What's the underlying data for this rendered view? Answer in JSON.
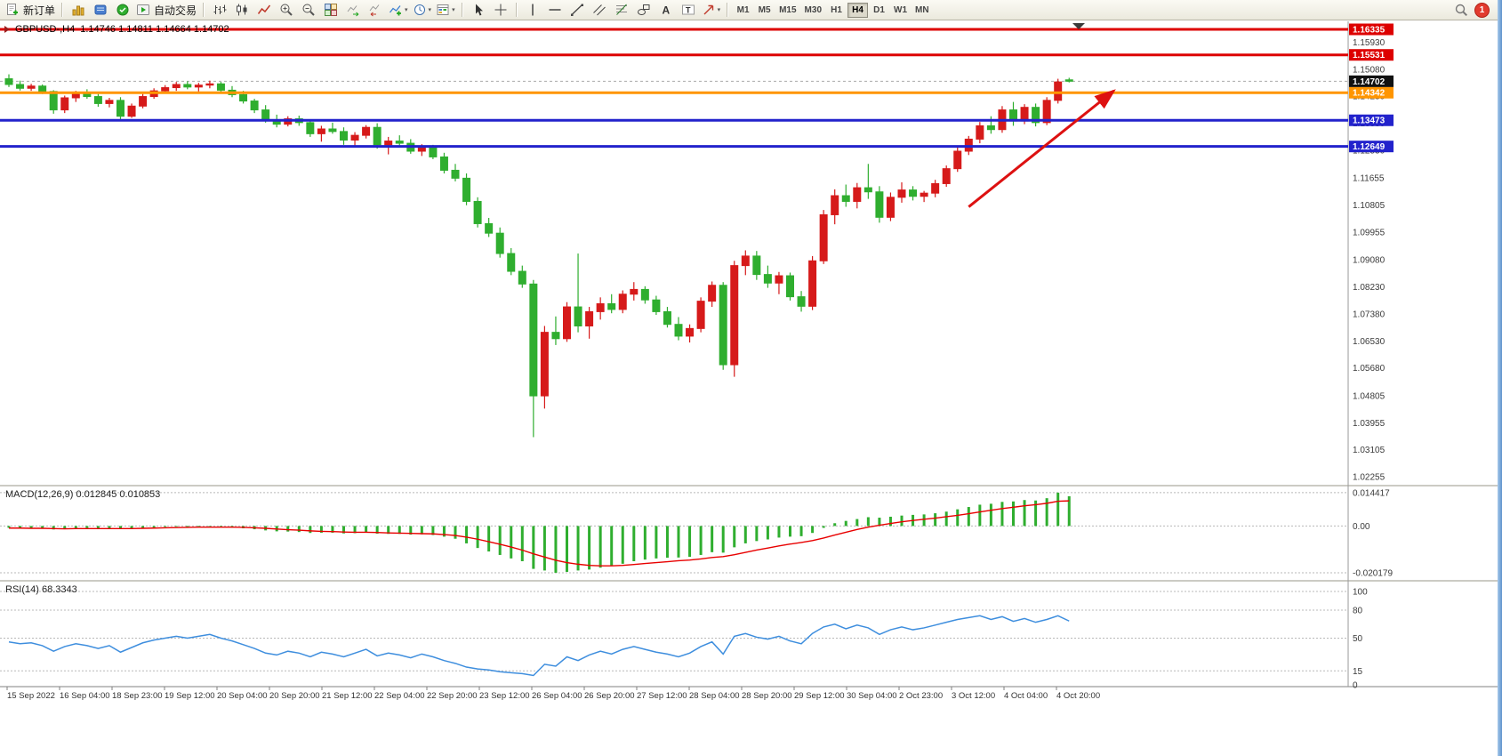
{
  "window": {
    "badge_count": "1"
  },
  "toolbar": {
    "new_order_label": "新订单",
    "auto_trading_label": "自动交易",
    "timeframes": [
      "M1",
      "M5",
      "M15",
      "M30",
      "H1",
      "H4",
      "D1",
      "W1",
      "MN"
    ],
    "active_timeframe": "H4",
    "icons": [
      "new-order",
      "charts",
      "profiles",
      "market-watch",
      "auto-trading",
      "bar-chart",
      "candlestick-chart",
      "line-chart",
      "zoom-in",
      "zoom-out",
      "tile-windows",
      "auto-scroll",
      "chart-shift",
      "indicators",
      "periods",
      "templates",
      "cursor",
      "crosshair",
      "vertical-line",
      "horizontal-line",
      "trendline",
      "equidistant-channel",
      "fibonacci-retracement",
      "graphic-objects",
      "text",
      "text-label",
      "arrows",
      "search",
      "notifications"
    ]
  },
  "chart": {
    "title": "GBPUSD-,H4",
    "ohlc_text": "1.14746 1.14811 1.14664 1.14702"
  },
  "indicators": {
    "macd": {
      "text": "MACD(12,26,9) 0.012845 0.010853",
      "scale": [
        "0.014417",
        "0.00",
        "-0.020179"
      ],
      "scale_values": [
        0.014417,
        0,
        -0.020179
      ]
    },
    "rsi": {
      "text": "RSI(14) 68.3343",
      "levels": [
        100,
        80,
        50,
        15,
        0
      ]
    }
  },
  "colors": {
    "bull": "#d61a1a",
    "bear": "#2fae2f",
    "macd_hist": "#2fae2f",
    "macd_signal": "#e80000",
    "rsi": "#3e8ede",
    "line_red": "#dd0000",
    "line_orange": "#ff9500",
    "line_blue": "#2222cc",
    "current_box": "#111111",
    "arrow": "#dd1111"
  },
  "price_lines": [
    {
      "label": "1.16335",
      "price": 1.16335,
      "color": "#dd0000",
      "style": "solid",
      "width": 3
    },
    {
      "label": "1.15531",
      "price": 1.15531,
      "color": "#dd0000",
      "style": "solid",
      "width": 3
    },
    {
      "label": "1.14342",
      "price": 1.14342,
      "color": "#ff9500",
      "style": "solid",
      "width": 3
    },
    {
      "label": "1.13473",
      "price": 1.13473,
      "color": "#2222cc",
      "style": "solid",
      "width": 3
    },
    {
      "label": "1.12649",
      "price": 1.12649,
      "color": "#2222cc",
      "style": "solid",
      "width": 3
    }
  ],
  "current_price": {
    "label": "1.14702",
    "price": 1.14702,
    "box_color": "#111111"
  },
  "axis": {
    "price_ticks": [
      "1.15930",
      "1.15080",
      "1.14230",
      "1.13380",
      "1.12530",
      "1.11655",
      "1.10805",
      "1.09955",
      "1.09080",
      "1.08230",
      "1.07380",
      "1.06530",
      "1.05680",
      "1.04805",
      "1.03955",
      "1.03105",
      "1.02255"
    ],
    "time_ticks": [
      "15 Sep 2022",
      "16 Sep 04:00",
      "18 Sep 23:00",
      "19 Sep 12:00",
      "20 Sep 04:00",
      "20 Sep 20:00",
      "21 Sep 12:00",
      "22 Sep 04:00",
      "22 Sep 20:00",
      "23 Sep 12:00",
      "26 Sep 04:00",
      "26 Sep 20:00",
      "27 Sep 12:00",
      "28 Sep 04:00",
      "28 Sep 20:00",
      "29 Sep 12:00",
      "30 Sep 04:00",
      "2 Oct 23:00",
      "3 Oct 12:00",
      "4 Oct 04:00",
      "4 Oct 20:00"
    ]
  },
  "annotations": {
    "trend_arrow": {
      "from_bar": 86,
      "from_price": 1.1075,
      "to_bar": 99,
      "to_price": 1.144,
      "color": "#dd1111"
    }
  },
  "chart_data": {
    "type": "candlestick",
    "symbol": "GBPUSD-",
    "timeframe": "H4",
    "ohlc_current": {
      "open": 1.14746,
      "high": 1.14811,
      "low": 1.14664,
      "close": 1.14702
    },
    "price_max_visible": 1.16335,
    "price_min_visible": 1.02255,
    "candles": [
      [
        1.1478,
        1.1492,
        1.1452,
        1.146
      ],
      [
        1.146,
        1.1472,
        1.1441,
        1.1448
      ],
      [
        1.1448,
        1.1462,
        1.144,
        1.1455
      ],
      [
        1.1455,
        1.146,
        1.143,
        1.1438
      ],
      [
        1.1438,
        1.1442,
        1.1368,
        1.138
      ],
      [
        1.138,
        1.1425,
        1.137,
        1.1418
      ],
      [
        1.1418,
        1.144,
        1.1405,
        1.1432
      ],
      [
        1.1432,
        1.1445,
        1.1415,
        1.1422
      ],
      [
        1.1422,
        1.143,
        1.139,
        1.14
      ],
      [
        1.14,
        1.1418,
        1.1388,
        1.141
      ],
      [
        1.141,
        1.142,
        1.1347,
        1.136
      ],
      [
        1.136,
        1.14,
        1.1355,
        1.1392
      ],
      [
        1.1392,
        1.143,
        1.1385,
        1.1422
      ],
      [
        1.1422,
        1.1448,
        1.1415,
        1.144
      ],
      [
        1.144,
        1.1458,
        1.1432,
        1.145
      ],
      [
        1.145,
        1.1468,
        1.144,
        1.146
      ],
      [
        1.146,
        1.147,
        1.1445,
        1.1452
      ],
      [
        1.1452,
        1.1465,
        1.1438,
        1.1458
      ],
      [
        1.1458,
        1.1472,
        1.1448,
        1.1462
      ],
      [
        1.1462,
        1.1468,
        1.1435,
        1.1442
      ],
      [
        1.1442,
        1.1455,
        1.142,
        1.1428
      ],
      [
        1.1428,
        1.144,
        1.14,
        1.1408
      ],
      [
        1.1408,
        1.1415,
        1.137,
        1.138
      ],
      [
        1.138,
        1.1395,
        1.134,
        1.1348
      ],
      [
        1.1348,
        1.1365,
        1.1325,
        1.1335
      ],
      [
        1.1335,
        1.136,
        1.1328,
        1.1352
      ],
      [
        1.1352,
        1.1362,
        1.133,
        1.134
      ],
      [
        1.134,
        1.135,
        1.1295,
        1.1305
      ],
      [
        1.1305,
        1.133,
        1.128,
        1.132
      ],
      [
        1.132,
        1.134,
        1.1305,
        1.1312
      ],
      [
        1.1312,
        1.1325,
        1.127,
        1.1285
      ],
      [
        1.1285,
        1.131,
        1.1265,
        1.13
      ],
      [
        1.13,
        1.1332,
        1.129,
        1.1325
      ],
      [
        1.1325,
        1.1338,
        1.1258,
        1.127
      ],
      [
        1.127,
        1.1295,
        1.124,
        1.1282
      ],
      [
        1.1282,
        1.13,
        1.1268,
        1.1275
      ],
      [
        1.1275,
        1.1288,
        1.1242,
        1.125
      ],
      [
        1.125,
        1.1272,
        1.1235,
        1.1262
      ],
      [
        1.1262,
        1.127,
        1.1225,
        1.1232
      ],
      [
        1.1232,
        1.1245,
        1.118,
        1.119
      ],
      [
        1.119,
        1.121,
        1.1155,
        1.1165
      ],
      [
        1.1165,
        1.118,
        1.108,
        1.1092
      ],
      [
        1.1092,
        1.1105,
        1.101,
        1.1022
      ],
      [
        1.1022,
        1.104,
        1.098,
        1.0992
      ],
      [
        1.0992,
        1.101,
        1.0915,
        1.0928
      ],
      [
        1.0928,
        1.0945,
        1.086,
        1.0872
      ],
      [
        1.0872,
        1.089,
        1.082,
        1.0832
      ],
      [
        1.0832,
        1.0845,
        1.035,
        1.048
      ],
      [
        1.048,
        1.07,
        1.044,
        1.068
      ],
      [
        1.068,
        1.073,
        1.064,
        1.066
      ],
      [
        1.066,
        1.0775,
        1.065,
        1.076
      ],
      [
        1.076,
        1.0928,
        1.068,
        1.07
      ],
      [
        1.07,
        1.076,
        1.066,
        1.0745
      ],
      [
        1.0745,
        1.079,
        1.072,
        1.077
      ],
      [
        1.077,
        1.08,
        1.074,
        1.0752
      ],
      [
        1.0752,
        1.0812,
        1.074,
        1.08
      ],
      [
        1.08,
        1.0838,
        1.078,
        1.0815
      ],
      [
        1.0815,
        1.0825,
        1.077,
        1.0782
      ],
      [
        1.0782,
        1.0795,
        1.0735,
        1.0745
      ],
      [
        1.0745,
        1.076,
        1.0695,
        1.0705
      ],
      [
        1.0705,
        1.0728,
        1.0655,
        1.0668
      ],
      [
        1.0668,
        1.0705,
        1.0648,
        1.0692
      ],
      [
        1.0692,
        1.079,
        1.068,
        1.0778
      ],
      [
        1.0778,
        1.084,
        1.076,
        1.0828
      ],
      [
        1.0828,
        1.0838,
        1.0562,
        1.0578
      ],
      [
        1.0578,
        1.0905,
        1.054,
        1.089
      ],
      [
        1.089,
        1.0938,
        1.086,
        1.092
      ],
      [
        1.092,
        1.0936,
        1.0845,
        1.0862
      ],
      [
        1.0862,
        1.089,
        1.082,
        1.0835
      ],
      [
        1.0835,
        1.087,
        1.08,
        1.0858
      ],
      [
        1.0858,
        1.0868,
        1.078,
        1.0792
      ],
      [
        1.0792,
        1.081,
        1.0745,
        1.0762
      ],
      [
        1.0762,
        1.092,
        1.075,
        1.0905
      ],
      [
        1.0905,
        1.1065,
        1.0895,
        1.105
      ],
      [
        1.105,
        1.113,
        1.102,
        1.111
      ],
      [
        1.111,
        1.1145,
        1.1075,
        1.1092
      ],
      [
        1.1092,
        1.115,
        1.107,
        1.1135
      ],
      [
        1.1135,
        1.121,
        1.11,
        1.1122
      ],
      [
        1.1122,
        1.114,
        1.1025,
        1.1042
      ],
      [
        1.1042,
        1.112,
        1.103,
        1.1105
      ],
      [
        1.1105,
        1.1152,
        1.1088,
        1.1128
      ],
      [
        1.1128,
        1.114,
        1.1095,
        1.1108
      ],
      [
        1.1108,
        1.1125,
        1.109,
        1.1118
      ],
      [
        1.1118,
        1.116,
        1.1105,
        1.1148
      ],
      [
        1.1148,
        1.1205,
        1.1138,
        1.1195
      ],
      [
        1.1195,
        1.1262,
        1.1185,
        1.125
      ],
      [
        1.125,
        1.1298,
        1.1238,
        1.1288
      ],
      [
        1.1288,
        1.1342,
        1.1275,
        1.133
      ],
      [
        1.133,
        1.136,
        1.1305,
        1.1318
      ],
      [
        1.1318,
        1.1392,
        1.1308,
        1.138
      ],
      [
        1.138,
        1.1405,
        1.133,
        1.1345
      ],
      [
        1.1345,
        1.1398,
        1.1335,
        1.1388
      ],
      [
        1.1388,
        1.14,
        1.1328,
        1.134
      ],
      [
        1.134,
        1.142,
        1.1332,
        1.141
      ],
      [
        1.141,
        1.1478,
        1.14,
        1.1468
      ],
      [
        1.14746,
        1.14811,
        1.14664,
        1.14702
      ]
    ],
    "macd_hist": [
      -0.0008,
      -0.001,
      -0.0009,
      -0.0012,
      -0.0015,
      -0.0013,
      -0.001,
      -0.0009,
      -0.0011,
      -0.001,
      -0.0013,
      -0.0011,
      -0.0008,
      -0.0006,
      -0.0004,
      -0.0003,
      -0.0004,
      -0.0003,
      -0.0002,
      -0.0004,
      -0.0007,
      -0.001,
      -0.0014,
      -0.0019,
      -0.0023,
      -0.0024,
      -0.0026,
      -0.003,
      -0.0029,
      -0.0029,
      -0.0032,
      -0.0031,
      -0.0028,
      -0.0033,
      -0.0034,
      -0.0034,
      -0.0037,
      -0.0036,
      -0.0039,
      -0.0046,
      -0.0055,
      -0.0075,
      -0.0095,
      -0.011,
      -0.0125,
      -0.014,
      -0.0152,
      -0.0185,
      -0.0192,
      -0.0202,
      -0.0198,
      -0.0192,
      -0.0188,
      -0.018,
      -0.0172,
      -0.0163,
      -0.0152,
      -0.0145,
      -0.014,
      -0.0137,
      -0.0136,
      -0.0133,
      -0.0125,
      -0.0113,
      -0.0115,
      -0.0092,
      -0.0075,
      -0.0065,
      -0.0058,
      -0.005,
      -0.0046,
      -0.0044,
      -0.003,
      -0.0008,
      0.0012,
      0.0022,
      0.003,
      0.0038,
      0.0036,
      0.004,
      0.0045,
      0.0048,
      0.005,
      0.0055,
      0.0062,
      0.0072,
      0.0082,
      0.0092,
      0.0096,
      0.0104,
      0.0106,
      0.0112,
      0.011,
      0.012,
      0.0144,
      0.012845
    ],
    "macd_signal": [
      -0.0009,
      -0.0009,
      -0.001,
      -0.001,
      -0.0011,
      -0.0012,
      -0.0011,
      -0.0011,
      -0.0011,
      -0.0011,
      -0.0011,
      -0.0011,
      -0.001,
      -0.0009,
      -0.0008,
      -0.0007,
      -0.0006,
      -0.0005,
      -0.0005,
      -0.0005,
      -0.0005,
      -0.0006,
      -0.0008,
      -0.001,
      -0.0013,
      -0.0016,
      -0.0018,
      -0.0021,
      -0.0023,
      -0.0024,
      -0.0026,
      -0.0027,
      -0.0027,
      -0.0028,
      -0.003,
      -0.0031,
      -0.0032,
      -0.0033,
      -0.0034,
      -0.0037,
      -0.0041,
      -0.0048,
      -0.0057,
      -0.0068,
      -0.0079,
      -0.0091,
      -0.0104,
      -0.012,
      -0.0134,
      -0.0148,
      -0.0158,
      -0.0165,
      -0.017,
      -0.0172,
      -0.0172,
      -0.017,
      -0.0166,
      -0.0162,
      -0.0158,
      -0.0154,
      -0.015,
      -0.0147,
      -0.0142,
      -0.0136,
      -0.0132,
      -0.0124,
      -0.0114,
      -0.0104,
      -0.0095,
      -0.0086,
      -0.0078,
      -0.0071,
      -0.0063,
      -0.0052,
      -0.0039,
      -0.0027,
      -0.0015,
      -0.0005,
      0.0003,
      0.0011,
      0.0018,
      0.0024,
      0.0029,
      0.0034,
      0.004,
      0.0046,
      0.0053,
      0.0061,
      0.0068,
      0.0075,
      0.0081,
      0.0087,
      0.0092,
      0.0098,
      0.0107,
      0.010853
    ],
    "rsi": [
      46,
      44,
      45,
      42,
      36,
      41,
      44,
      42,
      39,
      42,
      35,
      40,
      45,
      48,
      50,
      52,
      50,
      52,
      54,
      50,
      47,
      43,
      39,
      34,
      32,
      36,
      34,
      30,
      35,
      33,
      30,
      34,
      38,
      31,
      34,
      32,
      29,
      33,
      30,
      26,
      23,
      19,
      17,
      16,
      14,
      13,
      12,
      10,
      22,
      20,
      30,
      26,
      32,
      36,
      33,
      38,
      41,
      38,
      35,
      33,
      30,
      34,
      41,
      46,
      33,
      52,
      55,
      51,
      49,
      52,
      47,
      44,
      55,
      62,
      65,
      60,
      64,
      61,
      54,
      59,
      62,
      59,
      61,
      64,
      67,
      70,
      72,
      74,
      70,
      73,
      68,
      71,
      67,
      70,
      74,
      68.3343
    ]
  }
}
